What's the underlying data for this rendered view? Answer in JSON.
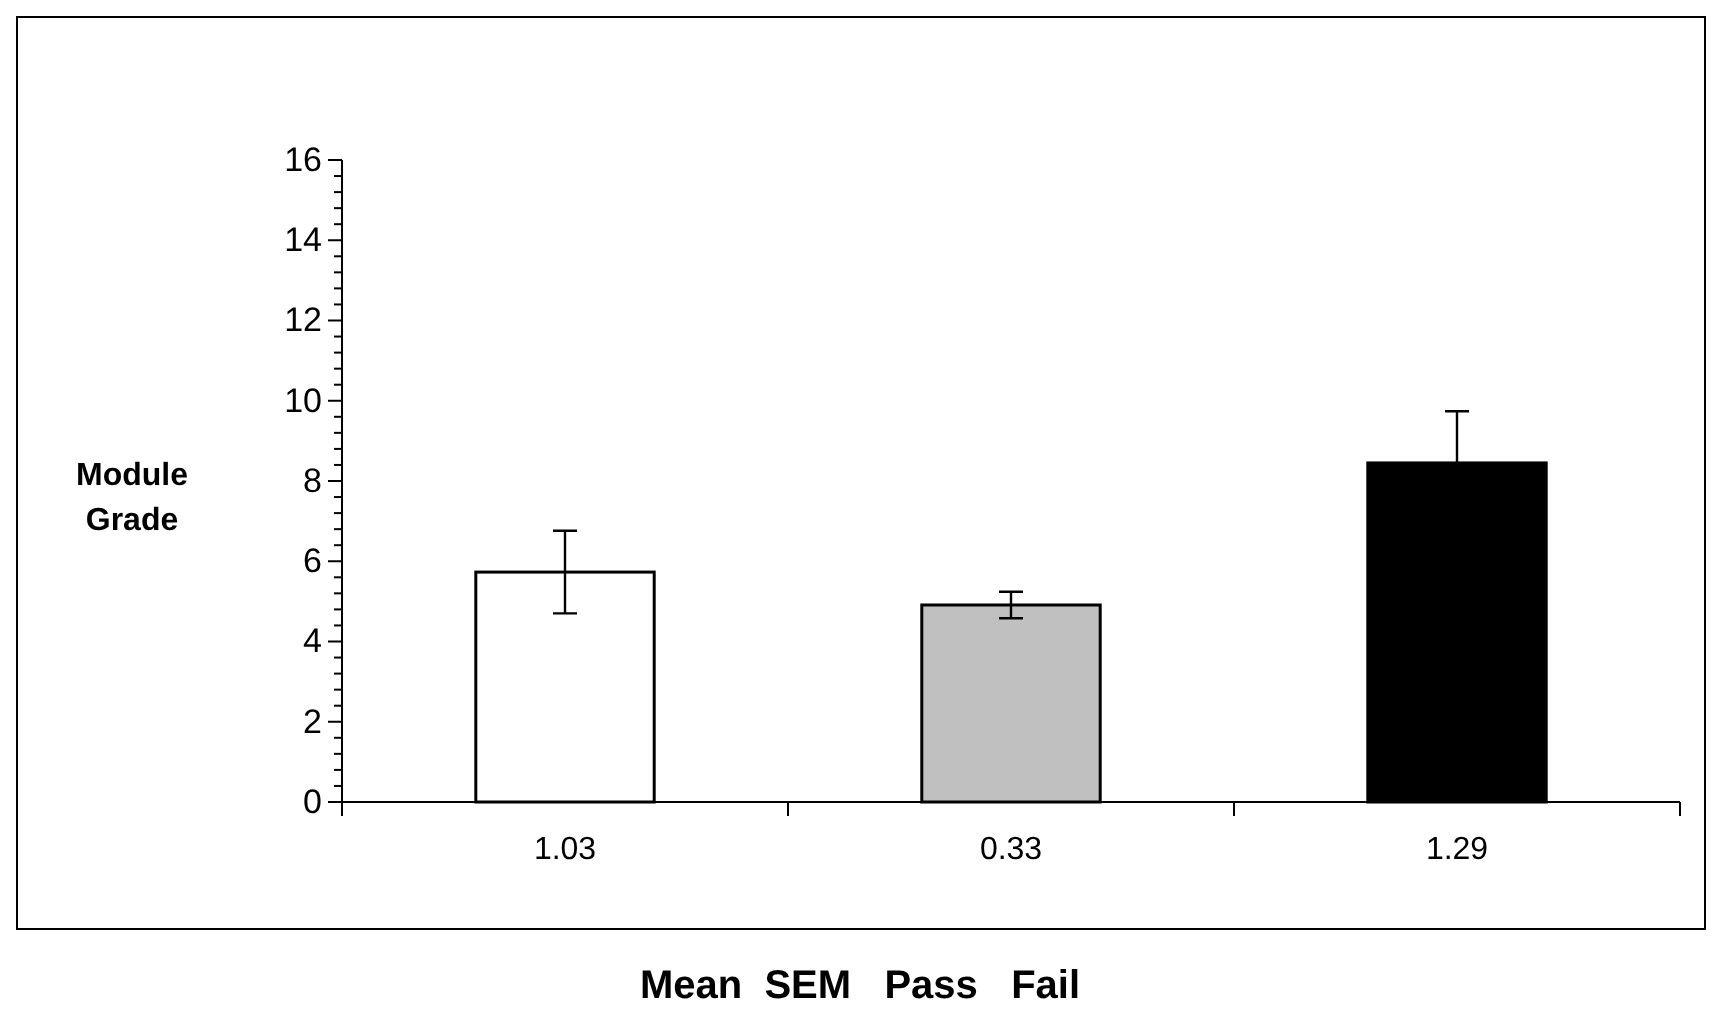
{
  "chart_data": {
    "type": "bar",
    "categories": [
      "1.03",
      "0.33",
      "1.29"
    ],
    "values": [
      5.73,
      4.91,
      8.45
    ],
    "errors": [
      1.03,
      0.33,
      1.29
    ],
    "colors": [
      "#ffffff",
      "#c0c0c0",
      "#000000"
    ],
    "ylabel": "Module Grade",
    "xlabel": "Mean  SEM   Pass   Fail",
    "ylim": [
      0,
      16
    ],
    "yticks": [
      0,
      {
        "value": 0.4,
        "label": null
      },
      {
        "value": 0.8,
        "label": null
      },
      {
        "value": 1.2,
        "label": null
      },
      {
        "value": 1.6,
        "label": null
      },
      2,
      {
        "value": 2.4,
        "label": null
      },
      {
        "value": 2.8,
        "label": null
      },
      {
        "value": 3.2,
        "label": null
      },
      {
        "value": 3.6,
        "label": null
      },
      4,
      {
        "value": 4.4,
        "label": null
      },
      {
        "value": 4.8,
        "label": null
      },
      {
        "value": 5.2,
        "label": null
      },
      {
        "value": 5.6,
        "label": null
      },
      6,
      {
        "value": 6.4,
        "label": null
      },
      {
        "value": 6.8,
        "label": null
      },
      {
        "value": 7.2,
        "label": null
      },
      {
        "value": 7.6,
        "label": null
      },
      8,
      {
        "value": 8.4,
        "label": null
      },
      {
        "value": 8.8,
        "label": null
      },
      {
        "value": 9.2,
        "label": null
      },
      {
        "value": 9.6,
        "label": null
      },
      10,
      {
        "value": 10.4,
        "label": null
      },
      {
        "value": 10.8,
        "label": null
      },
      {
        "value": 11.2,
        "label": null
      },
      {
        "value": 11.6,
        "label": null
      },
      12,
      {
        "value": 12.4,
        "label": null
      },
      {
        "value": 12.8,
        "label": null
      },
      {
        "value": 13.2,
        "label": null
      },
      {
        "value": 13.6,
        "label": null
      },
      14,
      {
        "value": 14.4,
        "label": null
      },
      {
        "value": 14.8,
        "label": null
      },
      {
        "value": 15.2,
        "label": null
      },
      {
        "value": 15.6,
        "label": null
      },
      16
    ],
    "data_labels": false
  }
}
